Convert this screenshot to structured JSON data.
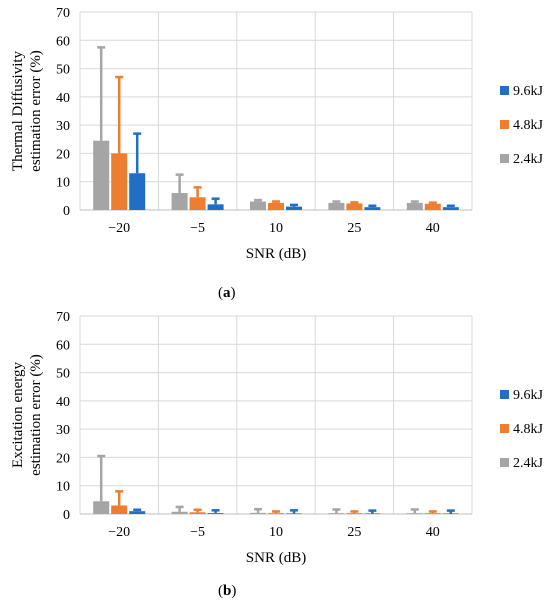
{
  "chart_data": [
    {
      "type": "bar",
      "panel": "a",
      "categories": [
        "−20",
        "−5",
        "10",
        "25",
        "40"
      ],
      "series": [
        {
          "name": "2.4kJ",
          "color": "#a5a5a5",
          "values": [
            24.5,
            6.0,
            3.0,
            2.5,
            2.5
          ],
          "error_upper": [
            57.5,
            12.5,
            3.5,
            3.0,
            3.0
          ]
        },
        {
          "name": "4.8kJ",
          "color": "#ed7d31",
          "values": [
            20.0,
            4.5,
            2.5,
            2.3,
            2.2
          ],
          "error_upper": [
            47.0,
            8.0,
            3.0,
            2.7,
            2.6
          ]
        },
        {
          "name": "9.6kJ",
          "color": "#1f6fc5",
          "values": [
            13.0,
            2.0,
            1.2,
            1.0,
            1.0
          ],
          "error_upper": [
            27.0,
            4.0,
            1.8,
            1.5,
            1.5
          ]
        }
      ],
      "xlabel": "SNR (dB)",
      "ylabel_line1": "Thermal Diffusivity",
      "ylabel_line2": "estimation error  (%)",
      "ylim": [
        0,
        70
      ],
      "yticks": [
        0,
        10,
        20,
        30,
        40,
        50,
        60,
        70
      ],
      "grid": true,
      "legend_position": "right",
      "legend_order": [
        "9.6kJ",
        "4.8kJ",
        "2.4kJ"
      ],
      "caption_open": "(",
      "caption_letter": "a",
      "caption_close": ")"
    },
    {
      "type": "bar",
      "panel": "b",
      "categories": [
        "−20",
        "−5",
        "10",
        "25",
        "40"
      ],
      "series": [
        {
          "name": "2.4kJ",
          "color": "#a5a5a5",
          "values": [
            4.5,
            0.8,
            0.4,
            0.3,
            0.3
          ],
          "error_upper": [
            20.5,
            2.5,
            1.7,
            1.6,
            1.6
          ]
        },
        {
          "name": "4.8kJ",
          "color": "#ed7d31",
          "values": [
            3.0,
            0.6,
            0.3,
            0.3,
            0.3
          ],
          "error_upper": [
            8.0,
            1.5,
            0.9,
            0.9,
            0.9
          ]
        },
        {
          "name": "9.6kJ",
          "color": "#1f6fc5",
          "values": [
            1.0,
            0.3,
            0.2,
            0.2,
            0.2
          ],
          "error_upper": [
            1.5,
            1.3,
            1.3,
            1.2,
            1.2
          ]
        }
      ],
      "xlabel": "SNR (dB)",
      "ylabel_line1": "Excitation energy",
      "ylabel_line2": "estimation error  (%)",
      "ylim": [
        0,
        70
      ],
      "yticks": [
        0,
        10,
        20,
        30,
        40,
        50,
        60,
        70
      ],
      "grid": true,
      "legend_position": "right",
      "legend_order": [
        "9.6kJ",
        "4.8kJ",
        "2.4kJ"
      ],
      "caption_open": "(",
      "caption_letter": "b",
      "caption_close": ")"
    }
  ]
}
